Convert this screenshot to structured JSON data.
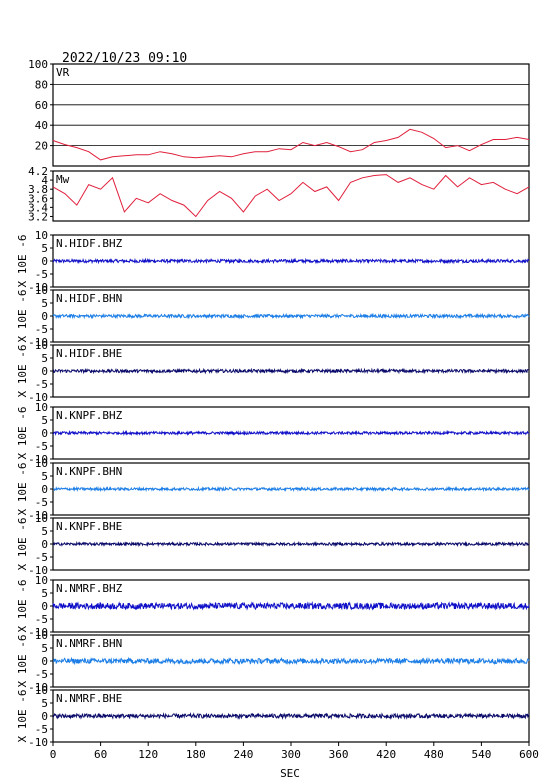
{
  "header": {
    "timestamp": "2022/10/23 09:10"
  },
  "chart_data": {
    "type": "line",
    "xlabel": "SEC",
    "xlim": [
      0,
      600
    ],
    "xticks": [
      0,
      60,
      120,
      180,
      240,
      300,
      360,
      420,
      480,
      540,
      600
    ],
    "panels": [
      {
        "label": "VR",
        "ylim": [
          0,
          100
        ],
        "yticks": [
          20,
          40,
          60,
          80,
          100
        ],
        "gridlines": [
          20,
          40,
          60,
          80
        ],
        "color": "#e0203c",
        "x": [
          0,
          15,
          30,
          45,
          60,
          75,
          90,
          105,
          120,
          135,
          150,
          165,
          180,
          195,
          210,
          225,
          240,
          255,
          270,
          285,
          300,
          315,
          330,
          345,
          360,
          375,
          390,
          405,
          420,
          435,
          450,
          465,
          480,
          495,
          510,
          525,
          540,
          555,
          570,
          585,
          600
        ],
        "values": [
          25,
          21,
          18,
          14,
          6,
          9,
          10,
          11,
          11,
          14,
          12,
          9,
          8,
          9,
          10,
          9,
          12,
          14,
          14,
          17,
          16,
          23,
          20,
          23,
          19,
          14,
          16,
          23,
          25,
          28,
          36,
          33,
          27,
          18,
          20,
          15,
          21,
          26,
          26,
          28,
          26
        ]
      },
      {
        "label": "Mw",
        "ylim": [
          3.1,
          4.2
        ],
        "yticks": [
          3.2,
          3.4,
          3.6,
          3.8,
          4,
          4.2
        ],
        "color": "#e0203c",
        "x": [
          0,
          15,
          30,
          45,
          60,
          75,
          90,
          105,
          120,
          135,
          150,
          165,
          180,
          195,
          210,
          225,
          240,
          255,
          270,
          285,
          300,
          315,
          330,
          345,
          360,
          375,
          390,
          405,
          420,
          435,
          450,
          465,
          480,
          495,
          510,
          525,
          540,
          555,
          570,
          585,
          600
        ],
        "values": [
          3.85,
          3.7,
          3.45,
          3.9,
          3.8,
          4.05,
          3.3,
          3.6,
          3.5,
          3.7,
          3.55,
          3.45,
          3.2,
          3.55,
          3.75,
          3.6,
          3.3,
          3.65,
          3.8,
          3.55,
          3.7,
          3.95,
          3.75,
          3.85,
          3.55,
          3.95,
          4.05,
          4.1,
          4.12,
          3.95,
          4.05,
          3.9,
          3.8,
          4.1,
          3.85,
          4.05,
          3.9,
          3.95,
          3.8,
          3.7,
          3.85
        ]
      },
      {
        "label": "N.HIDF.BHZ",
        "ylabel": "X 10E -6",
        "ylim": [
          -10,
          10
        ],
        "yticks": [
          -10,
          -5,
          0,
          5,
          10
        ],
        "color": "#1010c8",
        "amplitude": 0.6
      },
      {
        "label": "N.HIDF.BHN",
        "ylabel": "X 10E -6",
        "ylim": [
          -10,
          10
        ],
        "yticks": [
          -10,
          -5,
          0,
          5,
          10
        ],
        "color": "#1c7ee6",
        "amplitude": 0.6
      },
      {
        "label": "N.HIDF.BHE",
        "ylabel": "X 10E -6",
        "ylim": [
          -10,
          10
        ],
        "yticks": [
          -10,
          -5,
          0,
          5,
          10
        ],
        "color": "#0a0a6a",
        "amplitude": 0.6
      },
      {
        "label": "N.KNPF.BHZ",
        "ylabel": "X 10E -6",
        "ylim": [
          -10,
          10
        ],
        "yticks": [
          -10,
          -5,
          0,
          5,
          10
        ],
        "color": "#1010c8",
        "amplitude": 0.5
      },
      {
        "label": "N.KNPF.BHN",
        "ylabel": "X 10E -6",
        "ylim": [
          -10,
          10
        ],
        "yticks": [
          -10,
          -5,
          0,
          5,
          10
        ],
        "color": "#1c7ee6",
        "amplitude": 0.5
      },
      {
        "label": "N.KNPF.BHE",
        "ylabel": "X 10E -6",
        "ylim": [
          -10,
          10
        ],
        "yticks": [
          -10,
          -5,
          0,
          5,
          10
        ],
        "color": "#0a0a6a",
        "amplitude": 0.5
      },
      {
        "label": "N.NMRF.BHZ",
        "ylabel": "X 10E -6",
        "ylim": [
          -10,
          10
        ],
        "yticks": [
          -10,
          -5,
          0,
          5,
          10
        ],
        "color": "#1010c8",
        "amplitude": 1.2
      },
      {
        "label": "N.NMRF.BHN",
        "ylabel": "X 10E -6",
        "ylim": [
          -10,
          10
        ],
        "yticks": [
          -10,
          -5,
          0,
          5,
          10
        ],
        "color": "#1c7ee6",
        "amplitude": 1.0
      },
      {
        "label": "N.NMRF.BHE",
        "ylabel": "X 10E -6",
        "ylim": [
          -10,
          10
        ],
        "yticks": [
          -10,
          -5,
          0,
          5,
          10
        ],
        "color": "#0a0a6a",
        "amplitude": 0.8
      }
    ]
  }
}
